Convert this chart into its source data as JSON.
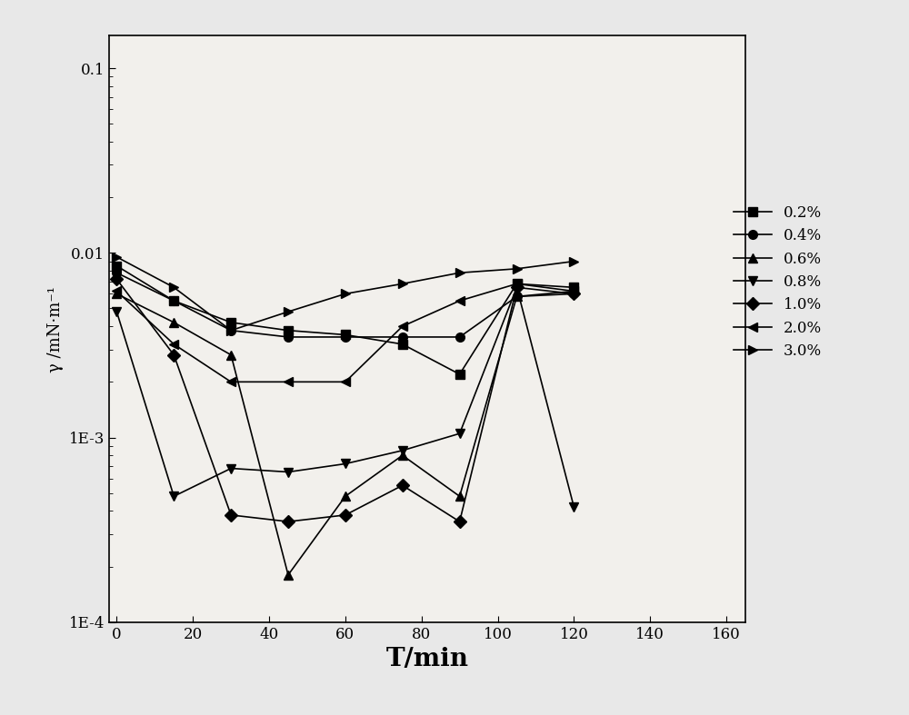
{
  "series": [
    {
      "label": "0.2%",
      "marker": "s",
      "x": [
        0,
        15,
        30,
        45,
        60,
        75,
        90,
        105,
        120
      ],
      "y": [
        0.0085,
        0.0055,
        0.0042,
        0.0038,
        0.0036,
        0.0032,
        0.0022,
        0.0068,
        0.0065
      ]
    },
    {
      "label": "0.4%",
      "marker": "o",
      "x": [
        0,
        15,
        30,
        45,
        60,
        75,
        90,
        105,
        120
      ],
      "y": [
        0.0078,
        0.0055,
        0.0038,
        0.0035,
        0.0035,
        0.0035,
        0.0035,
        0.0058,
        0.006
      ]
    },
    {
      "label": "0.6%",
      "marker": "^",
      "x": [
        0,
        15,
        30,
        45,
        60,
        75,
        90,
        105,
        120
      ],
      "y": [
        0.006,
        0.0042,
        0.0028,
        0.00018,
        0.00048,
        0.0008,
        0.00048,
        0.0058,
        0.0062
      ]
    },
    {
      "label": "0.8%",
      "marker": "v",
      "x": [
        0,
        15,
        30,
        45,
        60,
        75,
        90,
        105,
        120
      ],
      "y": [
        0.0048,
        0.00048,
        0.00068,
        0.00065,
        0.00072,
        0.00085,
        0.00105,
        0.0065,
        0.00042
      ]
    },
    {
      "label": "1.0%",
      "marker": "D",
      "x": [
        0,
        15,
        30,
        45,
        60,
        75,
        90,
        105,
        120
      ],
      "y": [
        0.0072,
        0.0028,
        0.00038,
        0.00035,
        0.00038,
        0.00055,
        0.00035,
        0.0065,
        0.006
      ]
    },
    {
      "label": "2.0%",
      "marker": "<",
      "x": [
        0,
        15,
        30,
        45,
        60,
        75,
        90,
        105,
        120
      ],
      "y": [
        0.0062,
        0.0032,
        0.002,
        0.002,
        0.002,
        0.004,
        0.0055,
        0.0068,
        0.0062
      ]
    },
    {
      "label": "3.0%",
      "marker": ">",
      "x": [
        0,
        15,
        30,
        45,
        60,
        75,
        90,
        105,
        120
      ],
      "y": [
        0.0095,
        0.0065,
        0.0038,
        0.0048,
        0.006,
        0.0068,
        0.0078,
        0.0082,
        0.009
      ]
    }
  ],
  "xlabel": "T/min",
  "ylabel": "γ /mN·m⁻¹",
  "xlim": [
    -2,
    165
  ],
  "ylim": [
    0.0001,
    0.15
  ],
  "xticks": [
    0,
    20,
    40,
    60,
    80,
    100,
    120,
    140,
    160
  ],
  "yticks": [
    0.0001,
    0.001,
    0.01,
    0.1
  ],
  "ytick_labels": [
    "1E-4",
    "1E-3",
    "0.01",
    "0.1"
  ],
  "background_color": "#e8e8e8",
  "plot_bg_color": "#f2f0ec",
  "line_color": "#000000",
  "marker_size": 7,
  "linewidth": 1.2,
  "legend_fontsize": 12,
  "xlabel_fontsize": 20,
  "ylabel_fontsize": 13,
  "tick_labelsize": 12
}
